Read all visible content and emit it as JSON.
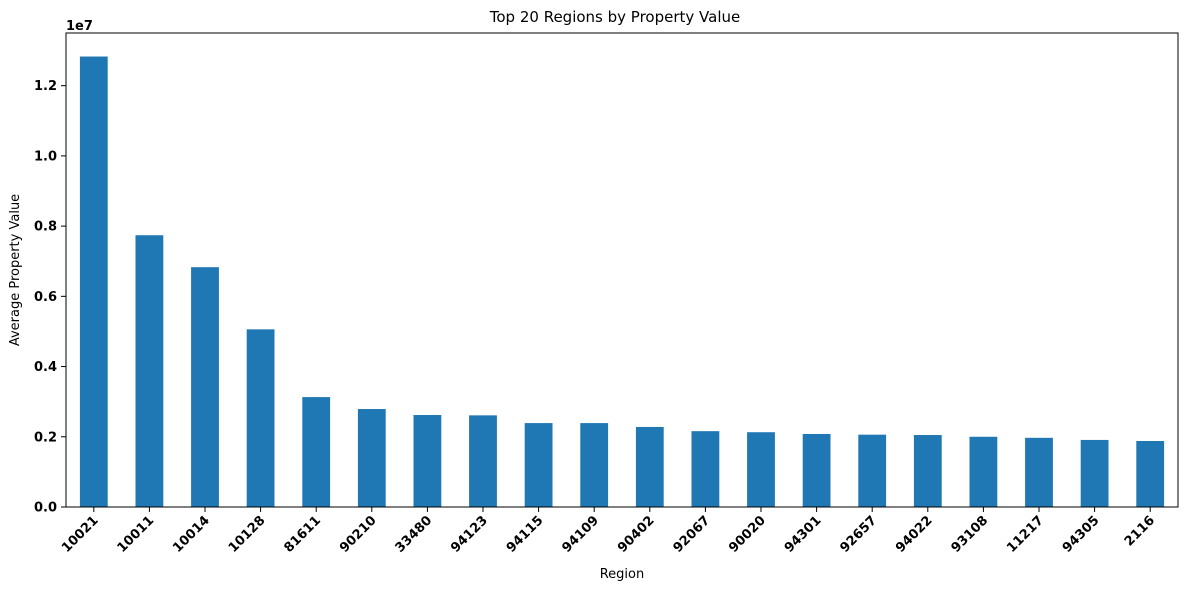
{
  "chart_data": {
    "type": "bar",
    "title": "Top 20 Regions by Property Value",
    "xlabel": "Region",
    "ylabel": "Average Property Value",
    "y_offset_label": "1e7",
    "categories": [
      "10021",
      "10011",
      "10014",
      "10128",
      "81611",
      "90210",
      "33480",
      "94123",
      "94115",
      "94109",
      "90402",
      "92067",
      "90020",
      "94301",
      "92657",
      "94022",
      "93108",
      "11217",
      "94305",
      "2116"
    ],
    "values": [
      12830000,
      7740000,
      6830000,
      5060000,
      3130000,
      2790000,
      2620000,
      2610000,
      2390000,
      2390000,
      2280000,
      2160000,
      2130000,
      2080000,
      2060000,
      2050000,
      2000000,
      1970000,
      1910000,
      1880000
    ],
    "y_ticks": [
      "0.0",
      "0.2",
      "0.4",
      "0.6",
      "0.8",
      "1.0",
      "1.2"
    ],
    "y_tick_values": [
      0,
      2000000,
      4000000,
      6000000,
      8000000,
      10000000,
      12000000
    ],
    "ylim": [
      0,
      13500000
    ],
    "grid": false,
    "bar_color": "#1f77b4"
  }
}
